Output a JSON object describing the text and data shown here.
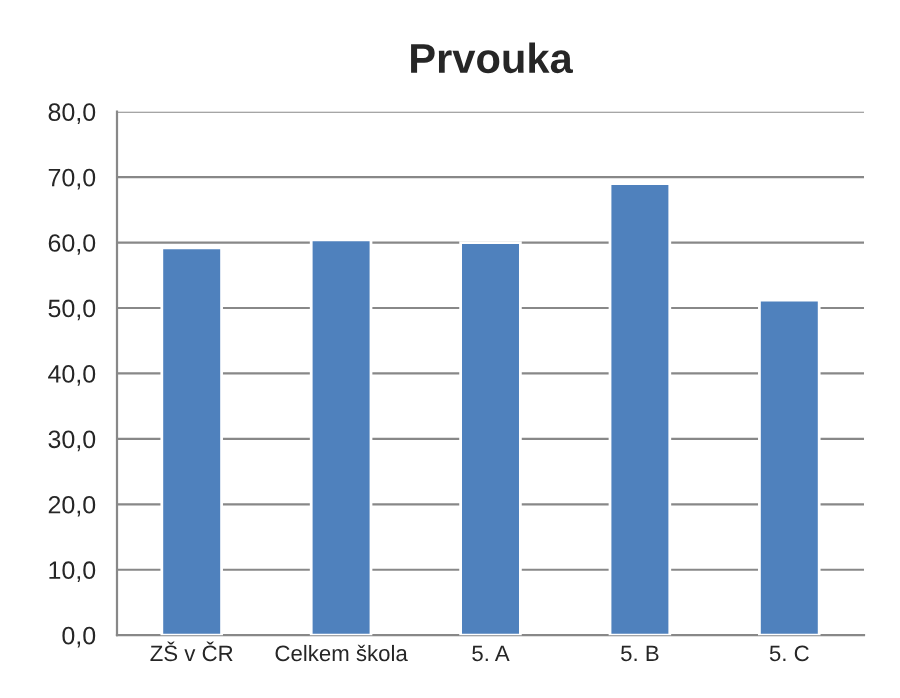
{
  "chart_data": {
    "type": "bar",
    "title": "Prvouka",
    "categories": [
      "ZŠ v ČR",
      "Celkem škola",
      "5. A",
      "5. B",
      "5. C"
    ],
    "values": [
      59.2,
      60.4,
      60.0,
      69.0,
      51.2
    ],
    "color": "#4f81bd",
    "ylim": [
      0,
      80
    ],
    "yticks": [
      {
        "value": 0,
        "label": "0,0"
      },
      {
        "value": 10,
        "label": "10,0"
      },
      {
        "value": 20,
        "label": "20,0"
      },
      {
        "value": 30,
        "label": "30,0"
      },
      {
        "value": 40,
        "label": "40,0"
      },
      {
        "value": 50,
        "label": "50,0"
      },
      {
        "value": 60,
        "label": "60,0"
      },
      {
        "value": 70,
        "label": "70,0"
      },
      {
        "value": 80,
        "label": "80,0"
      }
    ],
    "grid": "y",
    "legend": false
  }
}
